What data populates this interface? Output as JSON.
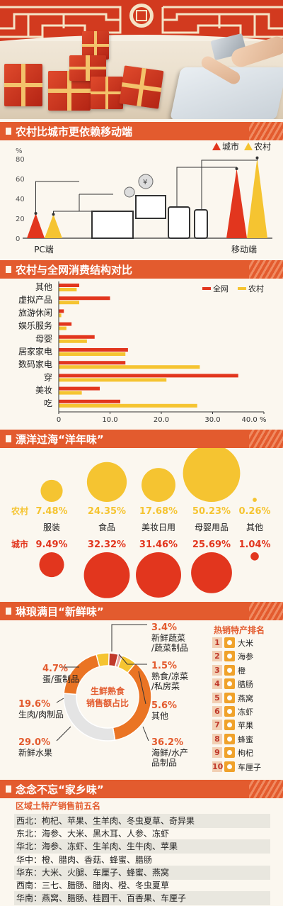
{
  "section1": {
    "title": "农村比城市更依赖移动端",
    "legend": [
      "城市",
      "农村"
    ],
    "y_unit": "%",
    "pc_label": "PC端",
    "mobile_label": "移动端"
  },
  "section2": {
    "title": "农村与全网消费结构对比",
    "legend": [
      "全网",
      "农村"
    ]
  },
  "section3": {
    "title": "漂洋过海“洋年味”",
    "row_rural": "农村",
    "row_city": "城市",
    "categories": [
      "服装",
      "食品",
      "美妆日用",
      "母婴用品",
      "其他"
    ],
    "rural_values": [
      "7.48%",
      "24.35%",
      "17.68%",
      "50.23%",
      "0.26%"
    ],
    "city_values": [
      "9.49%",
      "32.32%",
      "31.46%",
      "25.69%",
      "1.04%"
    ]
  },
  "section4": {
    "title": "琳琅满目“新鲜味”",
    "center": [
      "生鲜熟食",
      "销售额占比"
    ],
    "slices": [
      {
        "pct": "3.4%",
        "name_lines": [
          "新鲜蔬菜",
          "/蔬菜制品"
        ]
      },
      {
        "pct": "1.5%",
        "name_lines": [
          "熟食/凉菜",
          "/私房菜"
        ]
      },
      {
        "pct": "5.6%",
        "name_lines": [
          "其他"
        ]
      },
      {
        "pct": "36.2%",
        "name_lines": [
          "海鲜/水产",
          "品制品"
        ]
      },
      {
        "pct": "29.0%",
        "name_lines": [
          "新鲜水果"
        ]
      },
      {
        "pct": "19.6%",
        "name_lines": [
          "生肉/肉制品"
        ]
      },
      {
        "pct": "4.7%",
        "name_lines": [
          "蛋/蛋制品"
        ]
      }
    ],
    "ranking_title": "热销特产排名",
    "ranking": [
      {
        "n": "1",
        "name": "大米"
      },
      {
        "n": "2",
        "name": "海参"
      },
      {
        "n": "3",
        "name": "橙"
      },
      {
        "n": "4",
        "name": "腊肠"
      },
      {
        "n": "5",
        "name": "燕窝"
      },
      {
        "n": "6",
        "name": "冻虾"
      },
      {
        "n": "7",
        "name": "苹果"
      },
      {
        "n": "8",
        "name": "蜂蜜"
      },
      {
        "n": "9",
        "name": "枸杞"
      },
      {
        "n": "10",
        "name": "车厘子"
      }
    ]
  },
  "section5": {
    "title": "念念不忘“家乡味”",
    "subtitle": "区域土特产销售前五名",
    "rows": [
      "西北：枸杞、苹果、生羊肉、冬虫夏草、奇异果",
      "东北：海参、大米、黑木耳、人参、冻虾",
      "华北：海参、冻虾、生羊肉、生牛肉、苹果",
      "华中：橙、腊肉、香菇、蜂蜜、腊肠",
      "华东：大米、火腿、车厘子、蜂蜜、燕窝",
      "西南：三七、腊肠、腊肉、橙、冬虫夏草",
      "华南：燕窝、腊肠、桂圆干、百香果、车厘子"
    ]
  },
  "colors": {
    "city": "#e2361e",
    "rural": "#f5c431",
    "accent": "#e35b2e",
    "grey": "#e4e4e4"
  },
  "chart_data": [
    {
      "type": "bar",
      "title": "农村比城市更依赖移动端",
      "categories": [
        "PC端",
        "移动端"
      ],
      "series": [
        {
          "name": "城市",
          "values": [
            25,
            70
          ]
        },
        {
          "name": "农村",
          "values": [
            24,
            81
          ]
        }
      ],
      "ylabel": "%",
      "ylim": [
        0,
        80
      ],
      "yticks": [
        0,
        20,
        40,
        60,
        80
      ],
      "legend": "top-right"
    },
    {
      "type": "bar",
      "orientation": "horizontal",
      "title": "农村与全网消费结构对比",
      "categories": [
        "其他",
        "虚拟产品",
        "旅游休闲",
        "娱乐服务",
        "母婴",
        "居家家电",
        "数码家电",
        "穿",
        "美妆",
        "吃"
      ],
      "series": [
        {
          "name": "全网",
          "values": [
            4.0,
            10.0,
            1.0,
            2.5,
            7.0,
            13.5,
            13.0,
            35.0,
            8.0,
            12.0
          ]
        },
        {
          "name": "农村",
          "values": [
            3.5,
            4.0,
            0.5,
            1.5,
            5.5,
            13.0,
            27.5,
            21.0,
            4.5,
            27.0
          ]
        }
      ],
      "xlim": [
        0,
        40
      ],
      "xticks": [
        "0",
        "10.0",
        "20.0",
        "30.0",
        "40.0 %"
      ],
      "legend": "top-right"
    },
    {
      "type": "scatter",
      "title": "漂洋过海“洋年味”",
      "categories": [
        "服装",
        "食品",
        "美妆日用",
        "母婴用品",
        "其他"
      ],
      "series": [
        {
          "name": "农村",
          "values": [
            7.48,
            24.35,
            17.68,
            50.23,
            0.26
          ]
        },
        {
          "name": "城市",
          "values": [
            9.49,
            32.32,
            31.46,
            25.69,
            1.04
          ]
        }
      ]
    },
    {
      "type": "pie",
      "title": "琳琅满目“新鲜味”",
      "labels": [
        "新鲜蔬菜/蔬菜制品",
        "熟食/凉菜/私房菜",
        "其他",
        "海鲜/水产品制品",
        "新鲜水果",
        "生肉/肉制品",
        "蛋/蛋制品"
      ],
      "values": [
        3.4,
        1.5,
        5.6,
        36.2,
        29.0,
        19.6,
        4.7
      ],
      "colors": [
        "#c0392b",
        "#e9a7a0",
        "#f5c431",
        "#ea7424",
        "#e4e4e4",
        "#ea7424",
        "#f5c431"
      ]
    }
  ]
}
